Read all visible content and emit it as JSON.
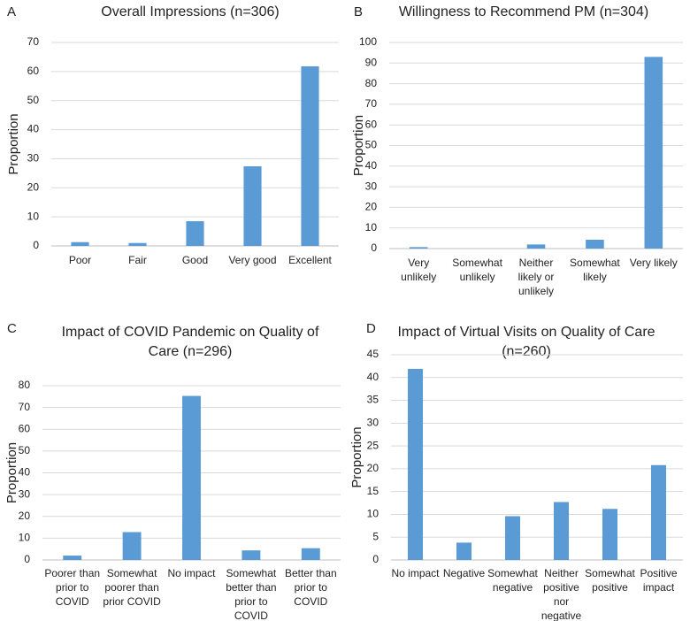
{
  "chart_data": [
    {
      "type": "bar",
      "panel_label": "A",
      "title_lines": [
        "Overall Impressions (n=306)"
      ],
      "ylabel": "Proportion",
      "xlabel": "",
      "ylim": [
        0,
        70
      ],
      "yticks": [
        0,
        10,
        20,
        30,
        40,
        50,
        60,
        70
      ],
      "categories": [
        [
          "Poor"
        ],
        [
          "Fair"
        ],
        [
          "Good"
        ],
        [
          "Very good"
        ],
        [
          "Excellent"
        ]
      ],
      "values": [
        1.3,
        1.0,
        8.5,
        27.4,
        61.8
      ],
      "bar_color": "#5B9BD5",
      "grid": true
    },
    {
      "type": "bar",
      "panel_label": "B",
      "title_lines": [
        "Willingness to Recommend PM (n=304)"
      ],
      "ylabel": "Proportion",
      "xlabel": "",
      "ylim": [
        0,
        100
      ],
      "yticks": [
        0,
        10,
        20,
        30,
        40,
        50,
        60,
        70,
        80,
        90,
        100
      ],
      "categories": [
        [
          "Very",
          "unlikely"
        ],
        [
          "Somewhat",
          "unlikely"
        ],
        [
          "Neither",
          "likely or",
          "unlikely"
        ],
        [
          "Somewhat",
          "likely"
        ],
        [
          "Very likely"
        ]
      ],
      "values": [
        0.7,
        0.0,
        2.0,
        4.3,
        93.0
      ],
      "bar_color": "#5B9BD5",
      "grid": true
    },
    {
      "type": "bar",
      "panel_label": "C",
      "title_lines": [
        "Impact of COVID Pandemic on Quality of",
        "Care (n=296)"
      ],
      "ylabel": "Proportion",
      "xlabel": "",
      "ylim": [
        0,
        80
      ],
      "yticks": [
        0,
        10,
        20,
        30,
        40,
        50,
        60,
        70,
        80
      ],
      "categories": [
        [
          "Poorer than",
          "prior to",
          "COVID"
        ],
        [
          "Somewhat",
          "poorer than",
          "prior COVID"
        ],
        [
          "No impact"
        ],
        [
          "Somewhat",
          "better than",
          "prior to",
          "COVID"
        ],
        [
          "Better than",
          "prior to",
          "COVID"
        ]
      ],
      "values": [
        2.0,
        12.8,
        75.3,
        4.4,
        5.4
      ],
      "bar_color": "#5B9BD5",
      "grid": true
    },
    {
      "type": "bar",
      "panel_label": "D",
      "title_lines": [
        "Impact of Virtual Visits on Quality of Care",
        "(n=260)"
      ],
      "ylabel": "Proportion",
      "xlabel": "",
      "ylim": [
        0,
        45
      ],
      "yticks": [
        0,
        5,
        10,
        15,
        20,
        25,
        30,
        35,
        40,
        45
      ],
      "categories": [
        [
          "No impact"
        ],
        [
          "Negative"
        ],
        [
          "Somewhat",
          "negative"
        ],
        [
          "Neither",
          "positive",
          "nor",
          "negative"
        ],
        [
          "Somewhat",
          "positive"
        ],
        [
          "Positive",
          "impact"
        ]
      ],
      "values": [
        41.9,
        3.8,
        9.6,
        12.7,
        11.2,
        20.8
      ],
      "bar_color": "#5B9BD5",
      "grid": true
    }
  ]
}
